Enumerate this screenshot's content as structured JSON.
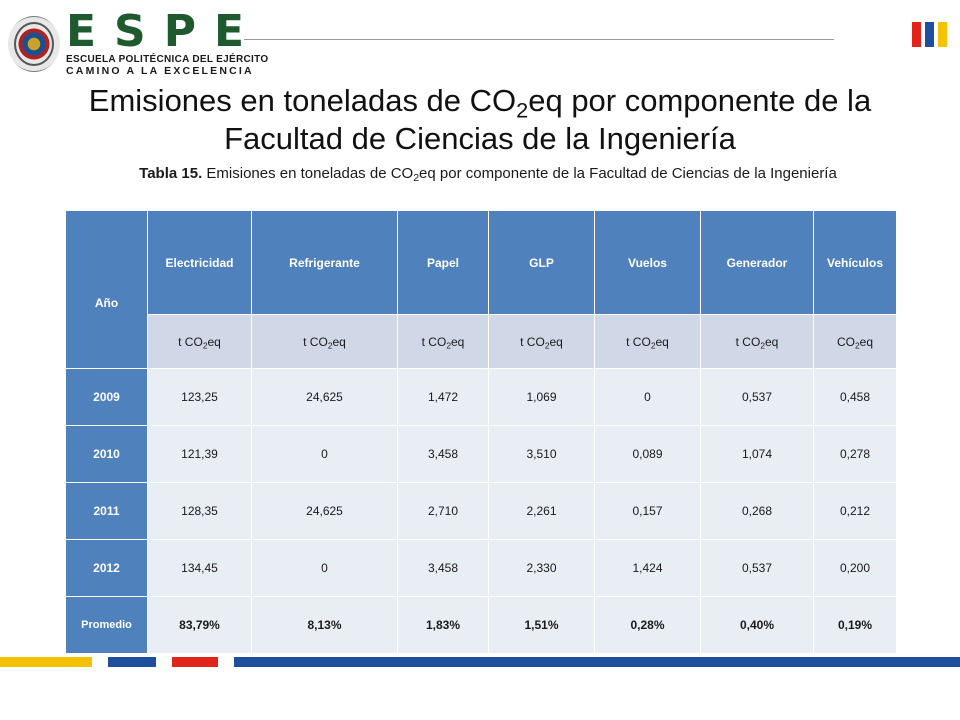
{
  "logo": {
    "wordmark": "ESPE",
    "line1": "ESCUELA POLITÉCNICA DEL EJÉRCITO",
    "line2": "CAMINO A LA EXCELENCIA"
  },
  "slide_title": {
    "part1": "Emisiones en toneladas de CO",
    "sub": "2",
    "part2": "eq por componente de la Facultad de Ciencias de la Ingeniería"
  },
  "caption": {
    "label": "Tabla 15.",
    "part1": " Emisiones en toneladas de CO",
    "sub": "2",
    "part2": "eq por componente de la Facultad de Ciencias de la Ingeniería"
  },
  "table": {
    "year_header": "Año",
    "columns": [
      "Electricidad",
      "Refrigerante",
      "Papel",
      "GLP",
      "Vuelos",
      "Generador",
      "Vehículos"
    ],
    "units": [
      {
        "prefix": "t CO",
        "sub": "2",
        "suffix": "eq"
      },
      {
        "prefix": "t CO",
        "sub": "2",
        "suffix": "eq"
      },
      {
        "prefix": "t CO",
        "sub": "2",
        "suffix": "eq"
      },
      {
        "prefix": "t CO",
        "sub": "2",
        "suffix": "eq"
      },
      {
        "prefix": "t CO",
        "sub": "2",
        "suffix": "eq"
      },
      {
        "prefix": "t CO",
        "sub": "2",
        "suffix": "eq"
      },
      {
        "prefix": "CO",
        "sub": "2",
        "suffix": "eq"
      }
    ],
    "rows": [
      {
        "year": "2009",
        "values": [
          "123,25",
          "24,625",
          "1,472",
          "1,069",
          "0",
          "0,537",
          "0,458"
        ]
      },
      {
        "year": "2010",
        "values": [
          "121,39",
          "0",
          "3,458",
          "3,510",
          "0,089",
          "1,074",
          "0,278"
        ]
      },
      {
        "year": "2011",
        "values": [
          "128,35",
          "24,625",
          "2,710",
          "2,261",
          "0,157",
          "0,268",
          "0,212"
        ]
      },
      {
        "year": "2012",
        "values": [
          "134,45",
          "0",
          "3,458",
          "2,330",
          "1,424",
          "0,537",
          "0,200"
        ]
      }
    ],
    "average": {
      "label": "Promedio",
      "values": [
        "83,79%",
        "8,13%",
        "1,83%",
        "1,51%",
        "0,28%",
        "0,40%",
        "0,19%"
      ]
    }
  },
  "colors": {
    "header_blue": "#4f81bd",
    "unit_row": "#d0d8e8",
    "cell": "#e9edf4",
    "logo_green": "#1e5a2e",
    "flag_red": "#e2231a",
    "flag_blue": "#1f4e9c",
    "flag_yellow": "#f4c200"
  }
}
